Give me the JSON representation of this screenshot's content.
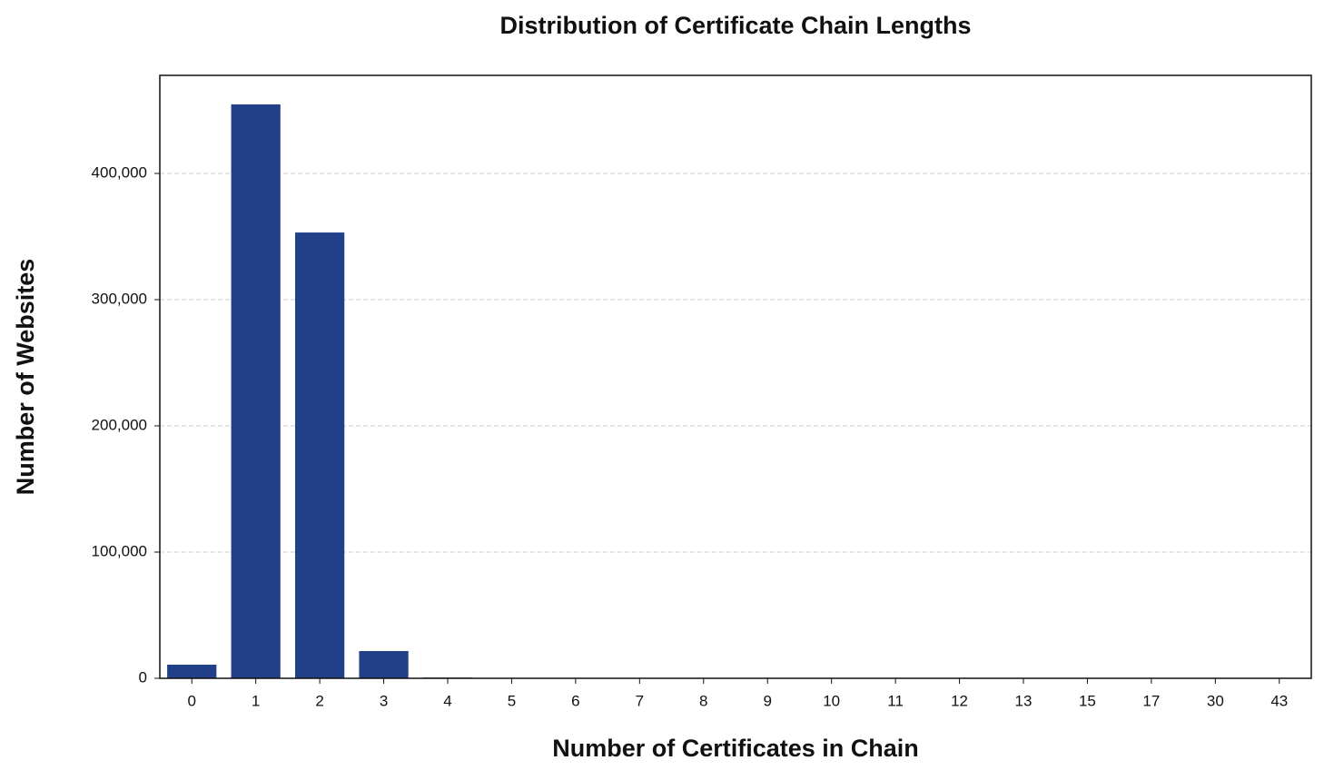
{
  "chart_data": {
    "type": "bar",
    "title": "Distribution of Certificate Chain Lengths",
    "x_label": "Number of Certificates in Chain",
    "y_label": "Number of Websites",
    "categories": [
      "0",
      "1",
      "2",
      "3",
      "4",
      "5",
      "6",
      "7",
      "8",
      "9",
      "10",
      "11",
      "12",
      "13",
      "15",
      "17",
      "30",
      "43"
    ],
    "values": [
      10800,
      454700,
      353200,
      21600,
      600,
      150,
      60,
      30,
      15,
      8,
      5,
      3,
      2,
      1,
      1,
      1,
      1,
      1
    ],
    "color": "#223f8a",
    "ylim": [
      0,
      477700
    ],
    "yticks": [
      0,
      {
        "value": 100000,
        "label": "100,000"
      },
      {
        "value": 200000,
        "label": "200,000"
      },
      {
        "value": 300000,
        "label": "300,000"
      },
      {
        "value": 400000,
        "label": "400,000"
      }
    ],
    "grid": true
  }
}
